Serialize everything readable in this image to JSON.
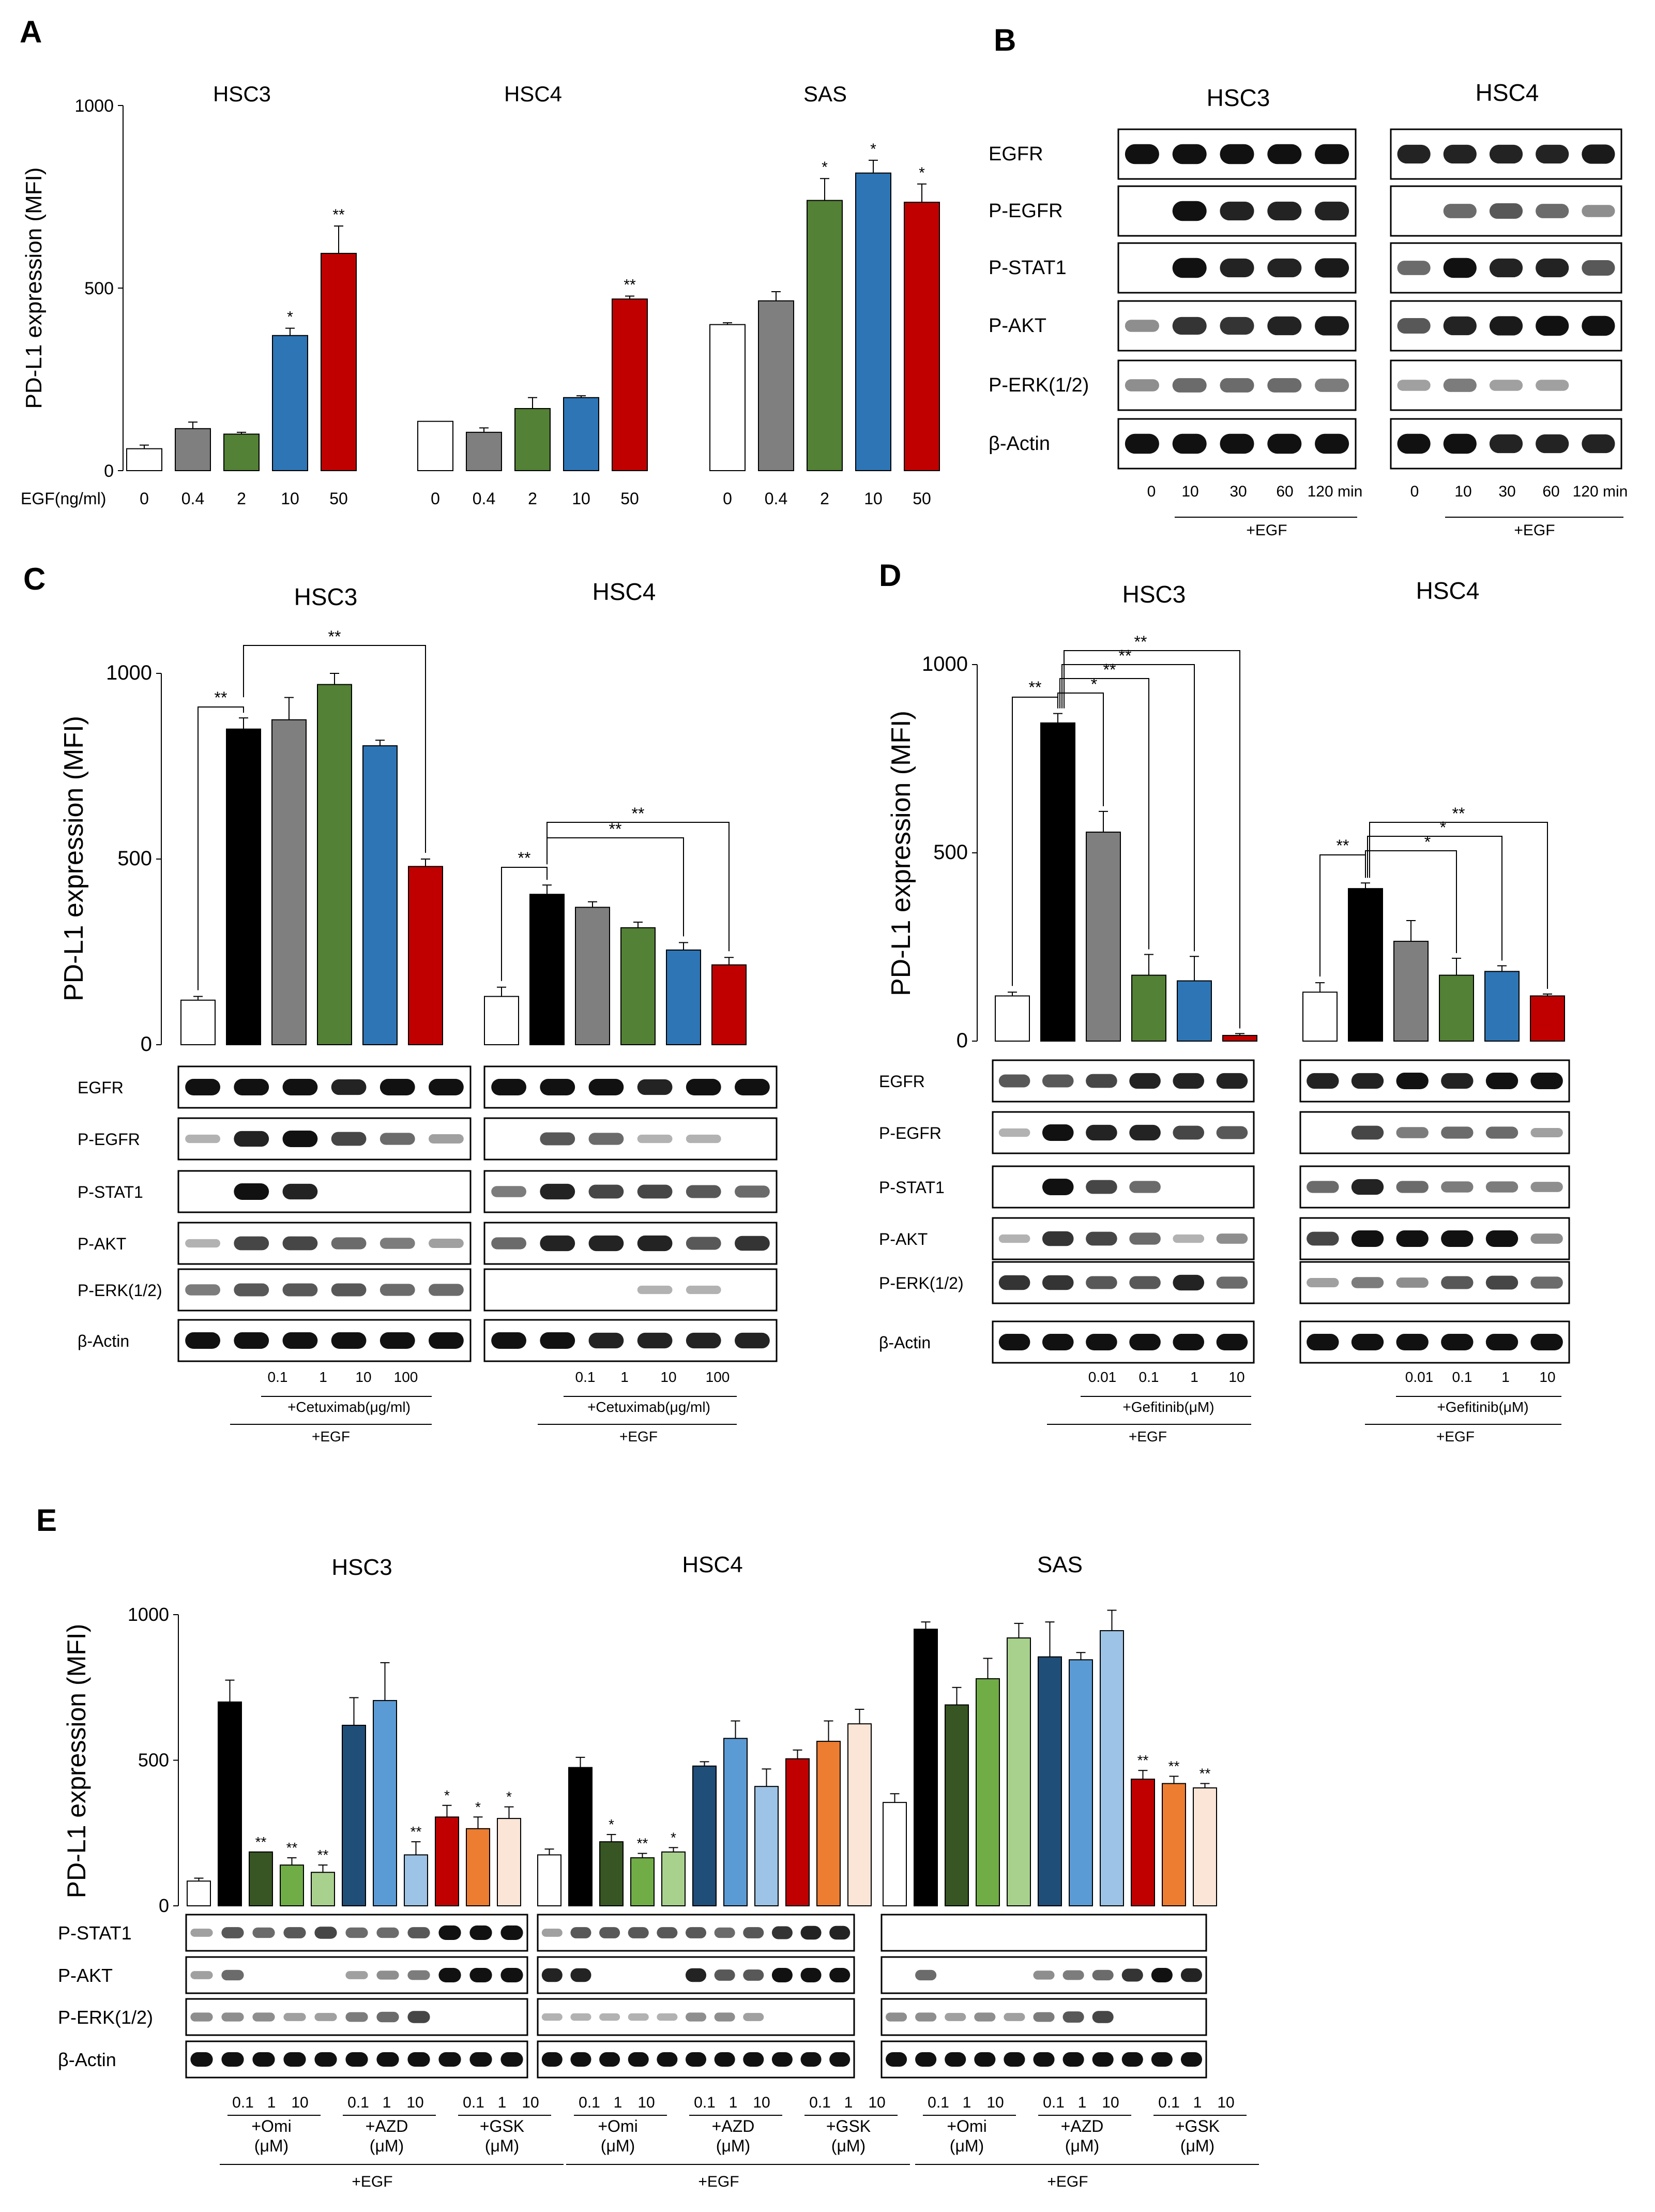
{
  "figure": {
    "colors": {
      "white": "#ffffff",
      "black": "#000000",
      "gray": "#7f7f7f",
      "green": "#538135",
      "blue": "#2e75b6",
      "red": "#c00000",
      "dkgreen": "#375623",
      "midgreen": "#70ad47",
      "ltgreen": "#a9d18e",
      "navy": "#1f4e79",
      "ltblue": "#5b9bd5",
      "paleblue": "#9dc3e6",
      "orange": "#ed7d31",
      "peach": "#f4b183",
      "cream": "#fbe5d6"
    }
  },
  "chart_data": [
    {
      "panel": "A",
      "type": "bar",
      "ylabel": "PD-L1 expression (MFI)",
      "ylim": [
        0,
        1000
      ],
      "yticks": [
        0,
        500,
        1000
      ],
      "xlabel": "EGF(ng/ml)",
      "groups": [
        {
          "name": "HSC3",
          "categories": [
            "0",
            "0.4",
            "2",
            "10",
            "50"
          ],
          "values": [
            60,
            115,
            100,
            370,
            595
          ],
          "errors": [
            10,
            18,
            5,
            20,
            75
          ],
          "sig": [
            "",
            "",
            "",
            "*",
            "**"
          ]
        },
        {
          "name": "HSC4",
          "categories": [
            "0",
            "0.4",
            "2",
            "10",
            "50"
          ],
          "values": [
            135,
            105,
            170,
            200,
            470
          ],
          "errors": [
            0,
            12,
            30,
            5,
            8
          ],
          "sig": [
            "",
            "",
            "",
            "",
            "**"
          ]
        },
        {
          "name": "SAS",
          "categories": [
            "0",
            "0.4",
            "2",
            "10",
            "50"
          ],
          "values": [
            400,
            465,
            740,
            815,
            735
          ],
          "errors": [
            5,
            25,
            60,
            35,
            50
          ],
          "sig": [
            "",
            "",
            "*",
            "*",
            "*"
          ]
        }
      ]
    },
    {
      "panel": "C",
      "type": "bar",
      "ylabel": "PD-L1 expression (MFI)",
      "ylim": [
        0,
        1000
      ],
      "yticks": [
        0,
        500,
        1000
      ],
      "groups": [
        {
          "name": "HSC3",
          "values": [
            120,
            850,
            875,
            970,
            805,
            480
          ],
          "errors": [
            10,
            30,
            60,
            30,
            15,
            20
          ]
        },
        {
          "name": "HSC4",
          "values": [
            130,
            405,
            370,
            315,
            255,
            215
          ],
          "errors": [
            25,
            25,
            15,
            15,
            20,
            20
          ]
        }
      ],
      "significance": [
        "**",
        "**",
        "**",
        "**"
      ],
      "blot_rows": [
        "EGFR",
        "P-EGFR",
        "P-STAT1",
        "P-AKT",
        "P-ERK(1/2)",
        "β-Actin"
      ],
      "doses": [
        "0.1",
        "1",
        "10",
        "100"
      ],
      "treatment": "+Cetuximab(μg/ml)",
      "stim": "+EGF"
    },
    {
      "panel": "D",
      "type": "bar",
      "ylabel": "PD-L1 expression (MFI)",
      "ylim": [
        0,
        1000
      ],
      "yticks": [
        0,
        500,
        1000
      ],
      "groups": [
        {
          "name": "HSC3",
          "values": [
            120,
            845,
            555,
            175,
            160,
            15
          ],
          "errors": [
            10,
            25,
            55,
            55,
            65,
            5
          ]
        },
        {
          "name": "HSC4",
          "values": [
            130,
            405,
            265,
            175,
            185,
            120
          ],
          "errors": [
            25,
            15,
            55,
            45,
            15,
            5
          ]
        }
      ],
      "significance_hsc3": [
        "**",
        "*",
        "**",
        "**",
        "**"
      ],
      "significance_hsc4": [
        "**",
        "*",
        "*",
        "**"
      ],
      "blot_rows": [
        "EGFR",
        "P-EGFR",
        "P-STAT1",
        "P-AKT",
        "P-ERK(1/2)",
        "β-Actin"
      ],
      "doses": [
        "0.01",
        "0.1",
        "1",
        "10"
      ],
      "treatment": "+Gefitinib(μM)",
      "stim": "+EGF"
    },
    {
      "panel": "E",
      "type": "bar",
      "ylabel": "PD-L1 expression (MFI)",
      "ylim": [
        0,
        1000
      ],
      "yticks": [
        0,
        500,
        1000
      ],
      "groups": [
        {
          "name": "HSC3",
          "values": [
            85,
            700,
            185,
            140,
            115,
            620,
            705,
            175,
            305,
            265,
            300
          ],
          "errors": [
            10,
            75,
            0,
            25,
            25,
            95,
            130,
            45,
            40,
            40,
            40
          ],
          "sig": [
            "",
            "",
            "**",
            "**",
            "**",
            "",
            "",
            "**",
            "*",
            "*",
            "*"
          ]
        },
        {
          "name": "HSC4",
          "values": [
            175,
            475,
            220,
            165,
            185,
            480,
            575,
            410,
            505,
            565,
            625
          ],
          "errors": [
            20,
            35,
            25,
            15,
            15,
            15,
            60,
            60,
            30,
            70,
            50
          ],
          "sig": [
            "",
            "",
            "*",
            "**",
            "*",
            "",
            "",
            "",
            "",
            "",
            ""
          ]
        },
        {
          "name": "SAS",
          "values": [
            355,
            950,
            690,
            780,
            920,
            855,
            845,
            945,
            435,
            420,
            405
          ],
          "errors": [
            30,
            25,
            60,
            70,
            50,
            120,
            25,
            70,
            30,
            25,
            15
          ],
          "sig": [
            "",
            "",
            "",
            "",
            "",
            "",
            "",
            "",
            "**",
            "**",
            "**"
          ]
        }
      ],
      "blot_rows": [
        "P-STAT1",
        "P-AKT",
        "P-ERK(1/2)",
        "β-Actin"
      ],
      "doses": [
        "0.1",
        "1",
        "10"
      ],
      "treatments": [
        {
          "l1": "+Omi",
          "l2": "(μM)"
        },
        {
          "l1": "+AZD",
          "l2": "(μM)"
        },
        {
          "l1": "+GSK",
          "l2": "(μM)"
        }
      ],
      "stim": "+EGF"
    }
  ],
  "panelB": {
    "title": "B",
    "groups": [
      "HSC3",
      "HSC4"
    ],
    "rows": [
      "EGFR",
      "P-EGFR",
      "P-STAT1",
      "P-AKT",
      "P-ERK(1/2)",
      "β-Actin"
    ],
    "times": [
      "0",
      "10",
      "30",
      "60",
      "120 min"
    ],
    "stim": "+EGF"
  },
  "panel_letters": [
    "A",
    "B",
    "C",
    "D",
    "E"
  ]
}
